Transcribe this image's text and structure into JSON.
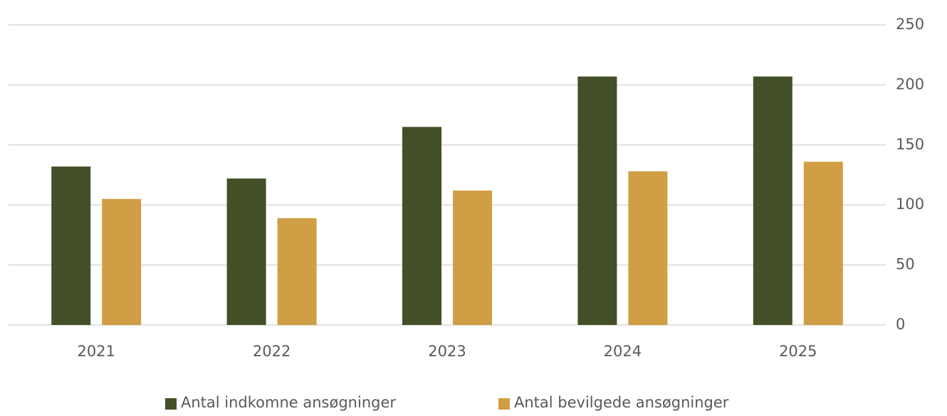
{
  "chart_data": {
    "type": "bar",
    "categories": [
      "2021",
      "2022",
      "2023",
      "2024",
      "2025"
    ],
    "series": [
      {
        "name": "Antal indkomne ansøgninger",
        "color": "#434f26",
        "values": [
          132,
          122,
          165,
          207,
          207
        ]
      },
      {
        "name": "Antal bevilgede ansøgninger",
        "color": "#d09e45",
        "values": [
          105,
          89,
          112,
          128,
          136
        ]
      }
    ],
    "ylim": [
      0,
      250
    ],
    "yticks": [
      0,
      50,
      100,
      150,
      200,
      250
    ],
    "grid": true,
    "y_axis_side": "right",
    "legend": "bottom"
  }
}
